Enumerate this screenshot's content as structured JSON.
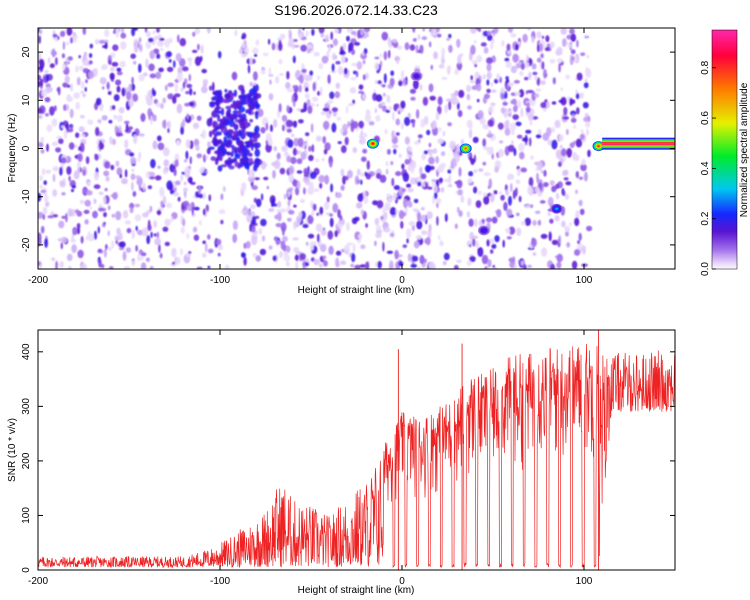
{
  "title": "S196.2026.072.14.33.C23",
  "chart_data": [
    {
      "type": "heatmap",
      "title": "S196.2026.072.14.33.C23",
      "xlabel": "Height of straight line (km)",
      "ylabel": "Frequency (Hz)",
      "xlim": [
        -200,
        150
      ],
      "ylim": [
        -25,
        25
      ],
      "xticks": [
        -200,
        -100,
        0,
        100
      ],
      "yticks": [
        -20,
        -10,
        0,
        10,
        20
      ],
      "colorbar": {
        "label": "Normalized spectral amplitude",
        "range": [
          0.0,
          0.95
        ],
        "ticks": [
          "0.0",
          "0.2",
          "0.4",
          "0.6",
          "0.8"
        ]
      },
      "data_extent_x": [
        -200,
        103
      ],
      "gaps_x": [
        [
          -105,
          -88
        ],
        [
          -18,
          -15
        ],
        [
          34,
          36
        ],
        [
          83,
          85
        ]
      ],
      "features": [
        {
          "label": "broadband burst",
          "x": -92,
          "y": 4,
          "level": 0.12
        },
        {
          "label": "peak",
          "x": -16,
          "y": 1,
          "level": 0.85
        },
        {
          "label": "peak",
          "x": 35,
          "y": 0,
          "level": 0.75
        },
        {
          "label": "peak",
          "x": 8,
          "y": 15,
          "level": 0.2
        },
        {
          "label": "peak",
          "x": 45,
          "y": -17,
          "level": 0.22
        },
        {
          "label": "peak",
          "x": 85,
          "y": -12.5,
          "level": 0.3
        },
        {
          "label": "peak",
          "x": 108,
          "y": 0.5,
          "level": 0.8
        },
        {
          "label": "continuous line",
          "x_from": 110,
          "x_to": 150,
          "y": 1,
          "level": 0.9
        }
      ]
    },
    {
      "type": "line",
      "title": "",
      "xlabel": "Height of straight line (km)",
      "ylabel": "SNR (10 * v/v)",
      "xlim": [
        -200,
        150
      ],
      "ylim": [
        0,
        440
      ],
      "xticks": [
        -200,
        -100,
        0,
        100
      ],
      "yticks": [
        0,
        100,
        200,
        300,
        400
      ],
      "color": "#ee2222",
      "envelope": {
        "x": [
          -200,
          -150,
          -120,
          -105,
          -95,
          -85,
          -75,
          -70,
          -65,
          -60,
          -50,
          -40,
          -30,
          -20,
          -10,
          0,
          10,
          20,
          30,
          35,
          45,
          55,
          60,
          70,
          80,
          90,
          100,
          108,
          115,
          125,
          135,
          150
        ],
        "low": [
          5,
          5,
          5,
          5,
          5,
          5,
          5,
          5,
          5,
          5,
          5,
          5,
          5,
          5,
          5,
          5,
          5,
          5,
          5,
          5,
          5,
          5,
          5,
          5,
          5,
          5,
          5,
          5,
          290,
          290,
          290,
          290
        ],
        "high": [
          25,
          25,
          25,
          40,
          60,
          85,
          110,
          150,
          165,
          130,
          120,
          100,
          135,
          165,
          230,
          290,
          280,
          300,
          320,
          360,
          360,
          380,
          395,
          400,
          410,
          410,
          420,
          420,
          400,
          400,
          400,
          410
        ]
      },
      "spikes": [
        {
          "x": -2,
          "y": 405
        },
        {
          "x": 33,
          "y": 415
        },
        {
          "x": 108,
          "y": 440
        }
      ]
    }
  ]
}
